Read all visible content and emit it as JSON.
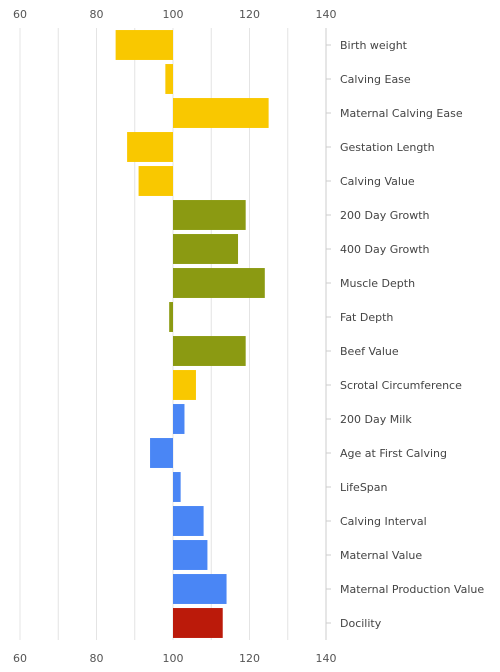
{
  "chart_data": {
    "type": "bar",
    "orientation": "horizontal",
    "baseline": 100,
    "xlim": [
      60,
      140
    ],
    "xticks": [
      60,
      80,
      100,
      120,
      140
    ],
    "grid": true,
    "categories": [
      "Birth weight",
      "Calving Ease",
      "Maternal Calving Ease",
      "Gestation Length",
      "Calving Value",
      "200 Day Growth",
      "400 Day Growth",
      "Muscle Depth",
      "Fat Depth",
      "Beef Value",
      "Scrotal Circumference",
      "200 Day Milk",
      "Age at First Calving",
      "LifeSpan",
      "Calving Interval",
      "Maternal Value",
      "Maternal Production Value",
      "Docility"
    ],
    "values": [
      85,
      98,
      125,
      88,
      91,
      119,
      117,
      124,
      99,
      119,
      106,
      103,
      94,
      102,
      108,
      109,
      114,
      113
    ],
    "colors": [
      "#f9c800",
      "#f9c800",
      "#f9c800",
      "#f9c800",
      "#f9c800",
      "#8b9a12",
      "#8b9a12",
      "#8b9a12",
      "#8b9a12",
      "#8b9a12",
      "#f9c800",
      "#4a86f5",
      "#4a86f5",
      "#4a86f5",
      "#4a86f5",
      "#4a86f5",
      "#4a86f5",
      "#bb1a0a"
    ]
  }
}
